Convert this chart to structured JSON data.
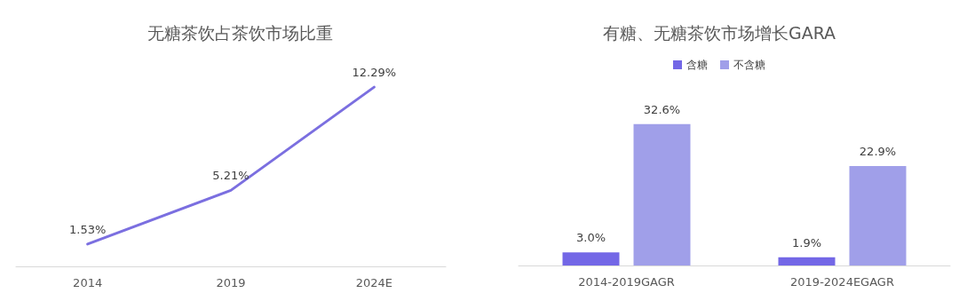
{
  "chart_data": [
    {
      "type": "line",
      "title": "无糖茶饮占茶饮市场比重",
      "categories": [
        "2014",
        "2019",
        "2024E"
      ],
      "series": [
        {
          "color": "#7b6fe0",
          "values": [
            1.53,
            5.21,
            12.29
          ],
          "value_labels": [
            "1.53%",
            "5.21%",
            "12.29%"
          ]
        }
      ],
      "tick_labels": "x",
      "grid": false,
      "legend": false,
      "marker": "none",
      "line_style": "solid"
    },
    {
      "type": "bar",
      "title": "有糖、无糖茶饮市场增长GARA",
      "categories": [
        "2014-2019GAGR",
        "2019-2024EGAGR"
      ],
      "series": [
        {
          "name": "含糖",
          "color": "#7367e6",
          "values": [
            3.0,
            1.9
          ],
          "value_labels": [
            "3.0%",
            "1.9%"
          ]
        },
        {
          "name": "不含糖",
          "color": "#a09fe9",
          "values": [
            32.6,
            22.9
          ],
          "value_labels": [
            "32.6%",
            "22.9%"
          ]
        }
      ],
      "tick_labels": "x",
      "grid": false,
      "legend": "top"
    }
  ]
}
